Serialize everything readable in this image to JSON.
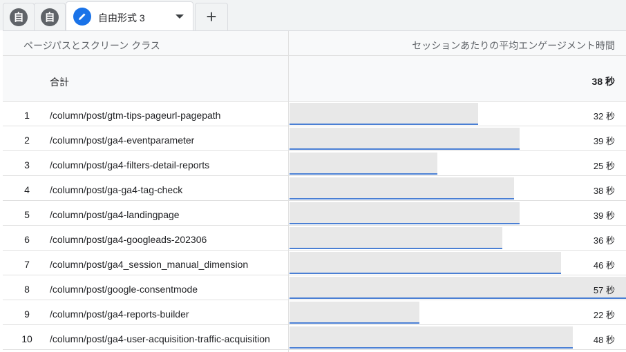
{
  "tabs": {
    "icon1_glyph": "自",
    "icon2_glyph": "自",
    "active_label": "自由形式 3",
    "add_label": "+"
  },
  "table": {
    "dimension_header": "ページパスとスクリーン クラス",
    "metric_header": "セッションあたりの平均エンゲージメント時間",
    "total_label": "合計",
    "total_value": "38 秒",
    "bar_color": "#4a7fd4",
    "rows": [
      {
        "index": "1",
        "path": "/column/post/gtm-tips-pageurl-pagepath",
        "value": "32 秒",
        "seconds": 32
      },
      {
        "index": "2",
        "path": "/column/post/ga4-eventparameter",
        "value": "39 秒",
        "seconds": 39
      },
      {
        "index": "3",
        "path": "/column/post/ga4-filters-detail-reports",
        "value": "25 秒",
        "seconds": 25
      },
      {
        "index": "4",
        "path": "/column/post/ga-ga4-tag-check",
        "value": "38 秒",
        "seconds": 38
      },
      {
        "index": "5",
        "path": "/column/post/ga4-landingpage",
        "value": "39 秒",
        "seconds": 39
      },
      {
        "index": "6",
        "path": "/column/post/ga4-googleads-202306",
        "value": "36 秒",
        "seconds": 36
      },
      {
        "index": "7",
        "path": "/column/post/ga4_session_manual_dimension",
        "value": "46 秒",
        "seconds": 46
      },
      {
        "index": "8",
        "path": "/column/post/google-consentmode",
        "value": "57 秒",
        "seconds": 57
      },
      {
        "index": "9",
        "path": "/column/post/ga4-reports-builder",
        "value": "22 秒",
        "seconds": 22
      },
      {
        "index": "10",
        "path": "/column/post/ga4-user-acquisition-traffic-acquisition",
        "value": "48 秒",
        "seconds": 48
      }
    ]
  }
}
